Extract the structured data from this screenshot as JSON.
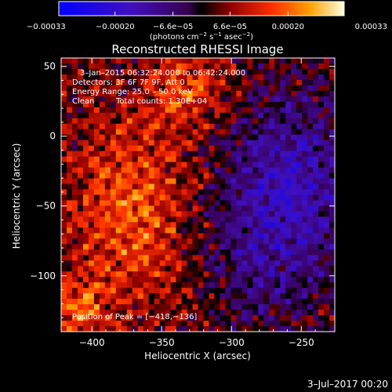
{
  "chart_data": {
    "type": "heatmap",
    "title": "Reconstructed RHESSI Image",
    "xlabel": "Heliocentric X (arcsec)",
    "ylabel": "Heliocentric Y (arcsec)",
    "xlim": [
      -422,
      -226
    ],
    "ylim": [
      -140,
      56
    ],
    "x_ticks": [
      -400,
      -350,
      -300,
      -250
    ],
    "x_tick_labels": [
      "−400",
      "−350",
      "−300",
      "−250"
    ],
    "y_ticks": [
      50,
      0,
      -50,
      -100
    ],
    "y_tick_labels": [
      "50",
      "0",
      "−50",
      "−100"
    ],
    "colorbar": {
      "range": [
        -0.00033,
        0.00033
      ],
      "ticks": [
        -0.00033,
        -0.0002,
        -6.6e-05,
        6.6e-05,
        0.0002,
        0.00033
      ],
      "tick_labels": [
        "−0.00033",
        "−0.00020",
        "−6.6e−05",
        "6.6e−05",
        "0.00020",
        "0.00033"
      ],
      "unit_main": "(photons cm",
      "unit_exp1": "−2",
      "unit_mid": " s",
      "unit_exp2": "−1",
      "unit_tail": " asec",
      "unit_exp3": "−2",
      "unit_close": ")"
    },
    "annotations": {
      "time_range": "3–Jan–2015 06:32:24.000 to 06:42:24.000",
      "detectors": "Detectors: 3F 6F 7F 9F, Att 0",
      "energy": "Energy Range: 25.0 – 50.0 keV",
      "method": "Clean",
      "counts": "Total counts: 1.30E+04",
      "peak": "Position of Peak = [−418,−136]"
    },
    "peak": [
      -418,
      -136
    ],
    "grid": false
  },
  "footer": {
    "timestamp": "3–Jul–2017 00:20"
  },
  "colors": {
    "background": "#000000",
    "text": "#ffffff"
  }
}
